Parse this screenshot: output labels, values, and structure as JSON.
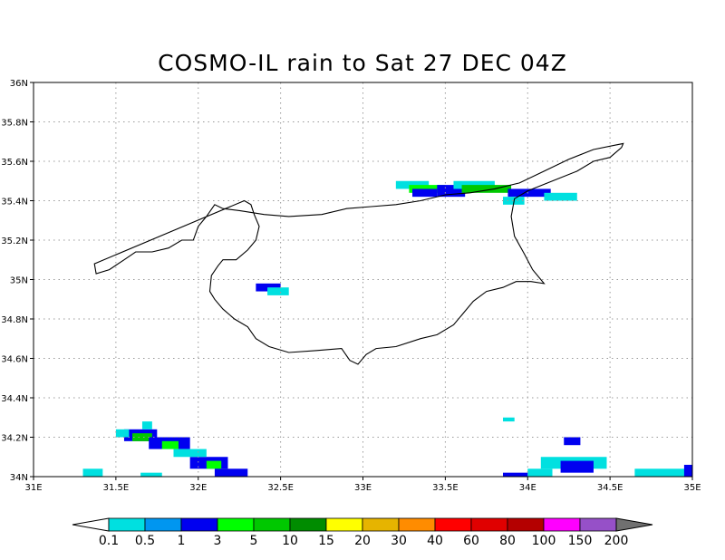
{
  "title": "COSMO-IL rain to Sat 27 DEC 04Z",
  "chart_data": {
    "type": "heatmap",
    "title": "COSMO-IL rain to Sat 27 DEC 04Z",
    "xlim": [
      31,
      35
    ],
    "ylim": [
      34,
      36
    ],
    "x_ticks": [
      "31E",
      "31.5E",
      "32E",
      "32.5E",
      "33E",
      "33.5E",
      "34E",
      "34.5E",
      "35E"
    ],
    "y_ticks": [
      "34N",
      "34.2N",
      "34.4N",
      "34.6N",
      "34.8N",
      "35N",
      "35.2N",
      "35.4N",
      "35.6N",
      "35.8N",
      "36N"
    ],
    "grid": true,
    "colorbar": {
      "labels": [
        "0.1",
        "0.5",
        "1",
        "3",
        "5",
        "10",
        "15",
        "20",
        "30",
        "40",
        "60",
        "80",
        "100",
        "150",
        "200"
      ],
      "colors": [
        "#00e0e0",
        "#0096f0",
        "#0000f0",
        "#00ff00",
        "#00c800",
        "#008c00",
        "#ffff00",
        "#e6b400",
        "#ff8c00",
        "#ff0000",
        "#e00000",
        "#b40000",
        "#ff00ff",
        "#9650c8"
      ],
      "under_color": "#ffffff",
      "over_color": "#707070"
    },
    "rain_cells_deg": [
      {
        "lon0": 33.2,
        "lon1": 33.4,
        "lat0": 35.46,
        "lat1": 35.5,
        "level": 0
      },
      {
        "lon0": 33.28,
        "lon1": 33.5,
        "lat0": 35.44,
        "lat1": 35.48,
        "level": 3
      },
      {
        "lon0": 33.3,
        "lon1": 33.45,
        "lat0": 35.42,
        "lat1": 35.46,
        "level": 2
      },
      {
        "lon0": 33.45,
        "lon1": 33.62,
        "lat0": 35.42,
        "lat1": 35.48,
        "level": 2
      },
      {
        "lon0": 33.55,
        "lon1": 33.8,
        "lat0": 35.46,
        "lat1": 35.5,
        "level": 0
      },
      {
        "lon0": 33.6,
        "lon1": 33.9,
        "lat0": 35.44,
        "lat1": 35.48,
        "level": 4
      },
      {
        "lon0": 33.88,
        "lon1": 34.14,
        "lat0": 35.42,
        "lat1": 35.46,
        "level": 2
      },
      {
        "lon0": 34.1,
        "lon1": 34.3,
        "lat0": 35.4,
        "lat1": 35.44,
        "level": 0
      },
      {
        "lon0": 33.85,
        "lon1": 33.98,
        "lat0": 35.38,
        "lat1": 35.42,
        "level": 0
      },
      {
        "lon0": 32.35,
        "lon1": 32.5,
        "lat0": 34.94,
        "lat1": 34.98,
        "level": 2
      },
      {
        "lon0": 32.42,
        "lon1": 32.55,
        "lat0": 34.92,
        "lat1": 34.96,
        "level": 0
      },
      {
        "lon0": 31.55,
        "lon1": 31.75,
        "lat0": 34.18,
        "lat1": 34.24,
        "level": 2
      },
      {
        "lon0": 31.6,
        "lon1": 31.72,
        "lat0": 34.18,
        "lat1": 34.22,
        "level": 4
      },
      {
        "lon0": 31.7,
        "lon1": 31.95,
        "lat0": 34.14,
        "lat1": 34.2,
        "level": 2
      },
      {
        "lon0": 31.78,
        "lon1": 31.88,
        "lat0": 34.14,
        "lat1": 34.18,
        "level": 3
      },
      {
        "lon0": 31.95,
        "lon1": 32.18,
        "lat0": 34.04,
        "lat1": 34.1,
        "level": 2
      },
      {
        "lon0": 32.05,
        "lon1": 32.14,
        "lat0": 34.04,
        "lat1": 34.08,
        "level": 3
      },
      {
        "lon0": 32.1,
        "lon1": 32.3,
        "lat0": 34.0,
        "lat1": 34.04,
        "level": 2
      },
      {
        "lon0": 31.85,
        "lon1": 32.05,
        "lat0": 34.1,
        "lat1": 34.14,
        "level": 0
      },
      {
        "lon0": 31.3,
        "lon1": 31.42,
        "lat0": 34.0,
        "lat1": 34.04,
        "level": 0
      },
      {
        "lon0": 31.66,
        "lon1": 31.72,
        "lat0": 34.24,
        "lat1": 34.28,
        "level": 0
      },
      {
        "lon0": 31.5,
        "lon1": 31.58,
        "lat0": 34.2,
        "lat1": 34.24,
        "level": 0
      },
      {
        "lon0": 31.65,
        "lon1": 31.78,
        "lat0": 34.0,
        "lat1": 34.02,
        "level": 0
      },
      {
        "lon0": 33.85,
        "lon1": 33.92,
        "lat0": 34.28,
        "lat1": 34.3,
        "level": 0
      },
      {
        "lon0": 34.22,
        "lon1": 34.32,
        "lat0": 34.16,
        "lat1": 34.2,
        "level": 2
      },
      {
        "lon0": 34.08,
        "lon1": 34.48,
        "lat0": 34.04,
        "lat1": 34.1,
        "level": 0
      },
      {
        "lon0": 34.2,
        "lon1": 34.4,
        "lat0": 34.02,
        "lat1": 34.08,
        "level": 2
      },
      {
        "lon0": 34.0,
        "lon1": 34.15,
        "lat0": 34.0,
        "lat1": 34.04,
        "level": 0
      },
      {
        "lon0": 33.85,
        "lon1": 34.0,
        "lat0": 34.0,
        "lat1": 34.02,
        "level": 2
      },
      {
        "lon0": 34.65,
        "lon1": 35.0,
        "lat0": 34.0,
        "lat1": 34.04,
        "level": 0
      },
      {
        "lon0": 34.95,
        "lon1": 35.0,
        "lat0": 34.0,
        "lat1": 34.06,
        "level": 2
      }
    ],
    "coastline_lonlat": [
      [
        31.37,
        35.08
      ],
      [
        31.38,
        35.03
      ],
      [
        31.46,
        35.05
      ],
      [
        31.55,
        35.1
      ],
      [
        31.62,
        35.14
      ],
      [
        31.72,
        35.14
      ],
      [
        31.82,
        35.16
      ],
      [
        31.9,
        35.2
      ],
      [
        31.97,
        35.2
      ],
      [
        32.0,
        35.27
      ],
      [
        32.05,
        35.32
      ],
      [
        32.1,
        35.38
      ],
      [
        32.15,
        35.36
      ],
      [
        32.25,
        35.35
      ],
      [
        32.4,
        35.33
      ],
      [
        32.55,
        35.32
      ],
      [
        32.75,
        35.33
      ],
      [
        32.9,
        35.36
      ],
      [
        33.05,
        35.37
      ],
      [
        33.2,
        35.38
      ],
      [
        33.35,
        35.4
      ],
      [
        33.5,
        35.43
      ],
      [
        33.65,
        35.44
      ],
      [
        33.8,
        35.46
      ],
      [
        33.95,
        35.49
      ],
      [
        34.1,
        35.55
      ],
      [
        34.25,
        35.61
      ],
      [
        34.4,
        35.66
      ],
      [
        34.52,
        35.68
      ],
      [
        34.58,
        35.69
      ],
      [
        34.57,
        35.67
      ],
      [
        34.5,
        35.62
      ],
      [
        34.4,
        35.6
      ],
      [
        34.3,
        35.55
      ],
      [
        34.15,
        35.5
      ],
      [
        34.0,
        35.45
      ],
      [
        33.92,
        35.41
      ],
      [
        33.9,
        35.32
      ],
      [
        33.92,
        35.22
      ],
      [
        33.98,
        35.13
      ],
      [
        34.03,
        35.05
      ],
      [
        34.1,
        34.98
      ],
      [
        34.02,
        34.99
      ],
      [
        33.93,
        34.99
      ],
      [
        33.85,
        34.96
      ],
      [
        33.75,
        34.94
      ],
      [
        33.67,
        34.89
      ],
      [
        33.6,
        34.82
      ],
      [
        33.55,
        34.77
      ],
      [
        33.45,
        34.72
      ],
      [
        33.35,
        34.7
      ],
      [
        33.2,
        34.66
      ],
      [
        33.08,
        34.65
      ],
      [
        33.02,
        34.62
      ],
      [
        32.97,
        34.57
      ],
      [
        32.92,
        34.59
      ],
      [
        32.87,
        34.65
      ],
      [
        32.72,
        34.64
      ],
      [
        32.55,
        34.63
      ],
      [
        32.43,
        34.66
      ],
      [
        32.35,
        34.7
      ],
      [
        32.3,
        34.76
      ],
      [
        32.22,
        34.8
      ],
      [
        32.15,
        34.85
      ],
      [
        32.1,
        34.9
      ],
      [
        32.07,
        34.94
      ],
      [
        32.08,
        35.02
      ],
      [
        32.12,
        35.07
      ],
      [
        32.15,
        35.1
      ],
      [
        32.23,
        35.1
      ],
      [
        32.3,
        35.15
      ],
      [
        32.35,
        35.2
      ],
      [
        32.37,
        35.27
      ],
      [
        32.34,
        35.33
      ],
      [
        32.32,
        35.38
      ],
      [
        32.28,
        35.4
      ]
    ]
  }
}
